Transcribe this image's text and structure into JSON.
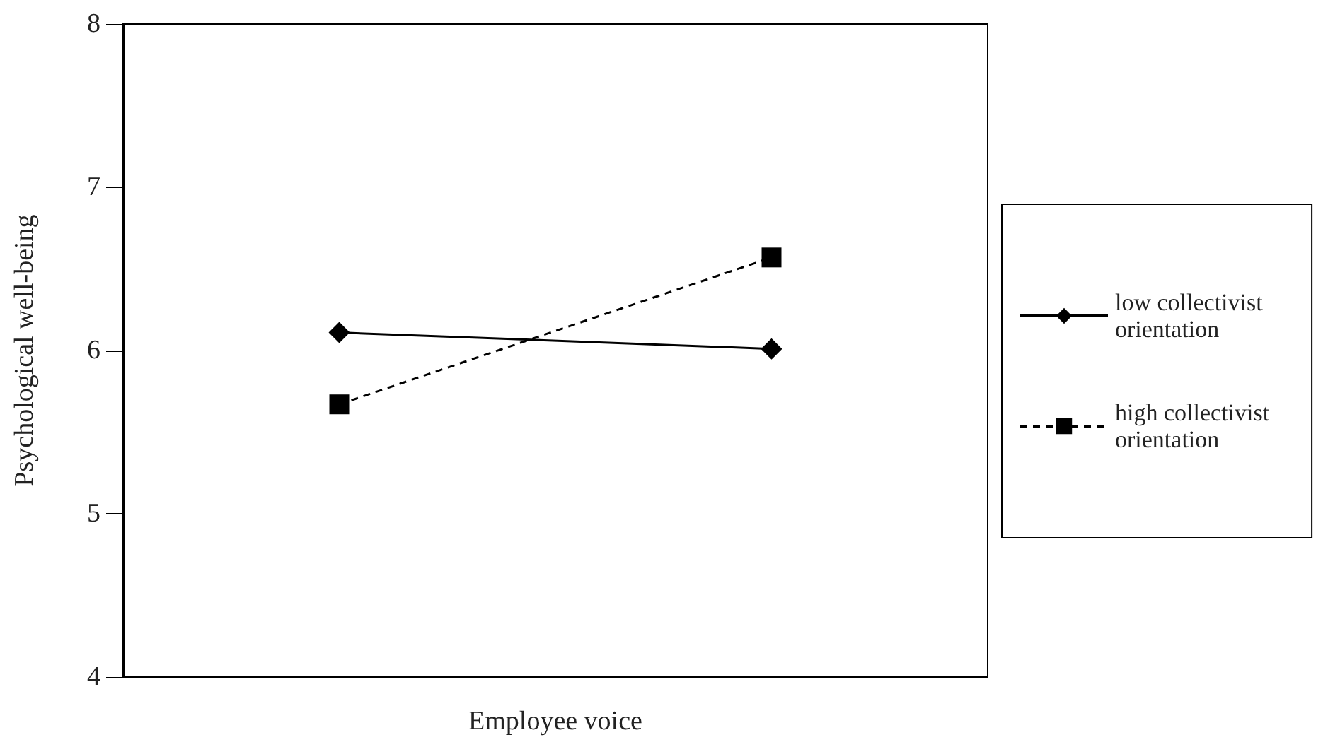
{
  "chart_data": {
    "type": "line",
    "xlabel": "Employee voice",
    "ylabel": "Psychological well-being",
    "categories": [
      null,
      null
    ],
    "series": [
      {
        "name": "low collectivist orientation",
        "color": "#000000",
        "marker": "diamond",
        "line_style": "solid",
        "values": [
          6.11,
          6.01
        ]
      },
      {
        "name": "high collectivist orientation",
        "color": "#000000",
        "marker": "square",
        "line_style": "dashed",
        "values": [
          5.67,
          6.57
        ]
      }
    ],
    "ylim": [
      4,
      8
    ],
    "yticks": [
      4,
      5,
      6,
      7,
      8
    ],
    "grid": false,
    "legend": "right"
  }
}
